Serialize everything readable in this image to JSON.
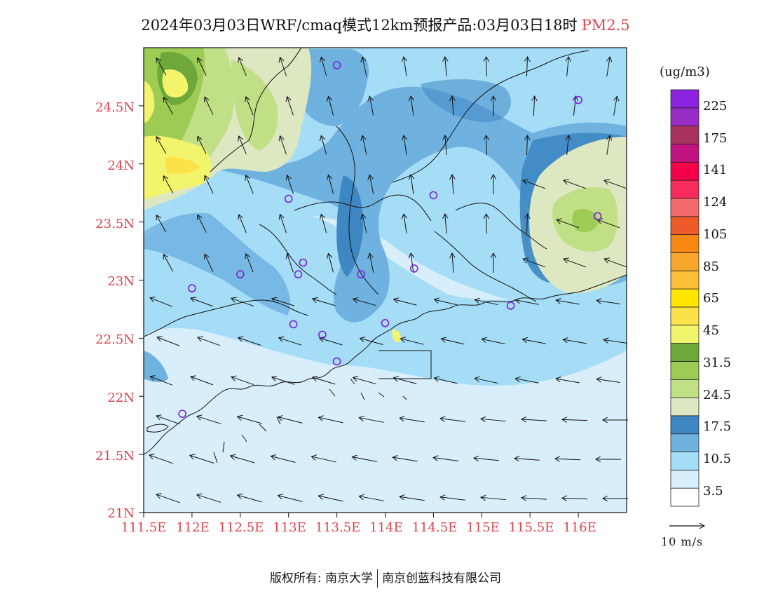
{
  "title": {
    "main": "2024年03月03日WRF/cmaq模式12km预报产品:03月03日18时",
    "variable": "PM2.5"
  },
  "map": {
    "lat_labels": [
      "24.5N",
      "24N",
      "23.5N",
      "23N",
      "22.5N",
      "22N",
      "21.5N",
      "21N"
    ],
    "lon_labels": [
      "111.5E",
      "112E",
      "112.5E",
      "113E",
      "113.5E",
      "114E",
      "114.5E",
      "115E",
      "115.5E",
      "116E"
    ],
    "extent": {
      "lon_min": 111.5,
      "lon_max": 116.5,
      "lat_min": 21.0,
      "lat_max": 25.0
    }
  },
  "colorbar": {
    "unit": "(ug/m3)",
    "labels": [
      "225",
      "175",
      "141",
      "124",
      "105",
      "85",
      "65",
      "45",
      "31.5",
      "24.5",
      "17.5",
      "10.5",
      "3.5"
    ],
    "colors": [
      "#ffffff",
      "#d8eefb",
      "#a6ddf6",
      "#6fb2e0",
      "#3f87c2",
      "#dde8c2",
      "#c1df84",
      "#9dcc55",
      "#6ea73a",
      "#f2f56b",
      "#fbe24b",
      "#ffe600",
      "#fdbf3a",
      "#f8a52c",
      "#f58712",
      "#ee5a2a",
      "#f36a6a",
      "#f52c5c",
      "#f7004a",
      "#c1137f",
      "#a8325e",
      "#9b2dc7",
      "#8a22e0"
    ]
  },
  "wind_reference": {
    "label": "10 m/s"
  },
  "stations": [
    {
      "lon": 113.5,
      "lat": 24.85
    },
    {
      "lon": 116.0,
      "lat": 24.55
    },
    {
      "lon": 113.0,
      "lat": 23.7
    },
    {
      "lon": 114.5,
      "lat": 23.73
    },
    {
      "lon": 116.2,
      "lat": 23.55
    },
    {
      "lon": 113.15,
      "lat": 23.15
    },
    {
      "lon": 112.5,
      "lat": 23.05
    },
    {
      "lon": 113.1,
      "lat": 23.05
    },
    {
      "lon": 113.75,
      "lat": 23.05
    },
    {
      "lon": 114.3,
      "lat": 23.1
    },
    {
      "lon": 112.0,
      "lat": 22.93
    },
    {
      "lon": 115.3,
      "lat": 22.78
    },
    {
      "lon": 113.05,
      "lat": 22.62
    },
    {
      "lon": 114.0,
      "lat": 22.63
    },
    {
      "lon": 113.35,
      "lat": 22.53
    },
    {
      "lon": 113.5,
      "lat": 22.3
    },
    {
      "lon": 111.9,
      "lat": 21.85
    }
  ],
  "footer": {
    "left": "版权所有: 南京大学",
    "right": "南京创蓝科技有限公司"
  }
}
